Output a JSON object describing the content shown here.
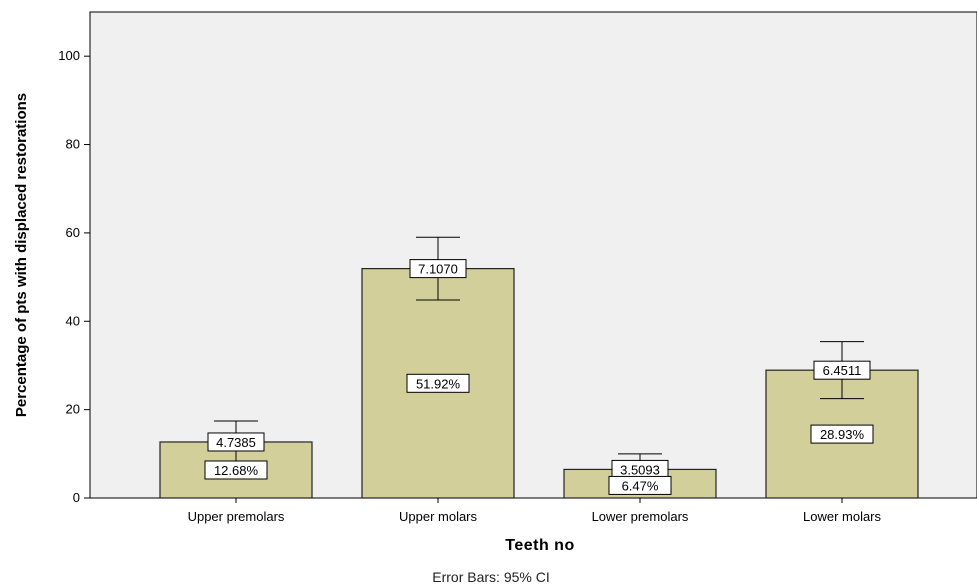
{
  "chart_data": {
    "type": "bar",
    "xlabel": "Teeth no",
    "ylabel": "Percentage of pts with displaced restorations",
    "footnote": "Error Bars: 95% CI",
    "ylim": [
      0,
      110
    ],
    "yticks": [
      0,
      20,
      40,
      60,
      80,
      100
    ],
    "categories": [
      "Upper premolars",
      "Upper molars",
      "Lower premolars",
      "Lower molars"
    ],
    "values": [
      12.68,
      51.92,
      6.47,
      28.93
    ],
    "value_labels": [
      "12.68%",
      "51.92%",
      "6.47%",
      "28.93%"
    ],
    "ci_half_width": [
      4.7385,
      7.107,
      3.5093,
      6.4511
    ],
    "ci_labels": [
      "4.7385",
      "7.1070",
      "3.5093",
      "6.4511"
    ],
    "grid": false,
    "colors": {
      "bar_fill": "#d3cf9a",
      "bar_stroke": "#222222",
      "plot_bg": "#f0f0f0",
      "axis": "#000000"
    }
  }
}
